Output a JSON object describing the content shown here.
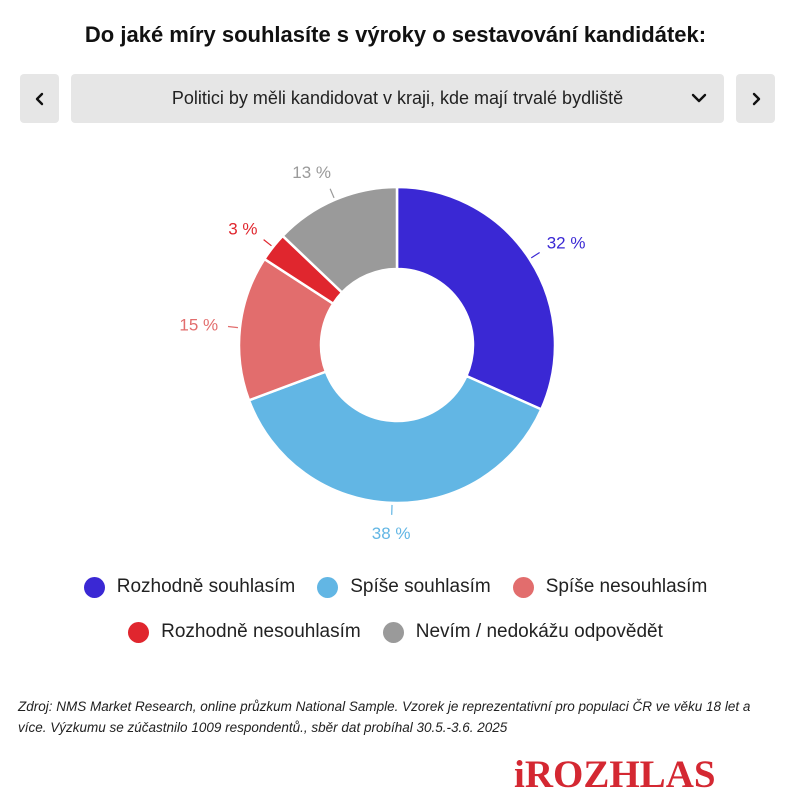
{
  "header": {
    "title": "Do jaké míry souhlasíte s výroky o sestavování kandidátek:"
  },
  "selector": {
    "value": "Politici by měli kandidovat v kraji, kde mají trvalé bydliště",
    "prev_icon": "chevron-left-icon",
    "next_icon": "chevron-right-icon",
    "dropdown_icon": "chevron-down-icon"
  },
  "chart_data": {
    "type": "pie",
    "donut": true,
    "categories": [
      "Rozhodně souhlasím",
      "Spíše souhlasím",
      "Spíše nesouhlasím",
      "Rozhodně nesouhlasím",
      "Nevím / nedokážu odpovědět"
    ],
    "values": [
      32,
      38,
      15,
      3,
      13
    ],
    "labels": [
      "32 %",
      "38 %",
      "15 %",
      "3 %",
      "13 %"
    ],
    "colors": [
      "#3a28d4",
      "#62b6e4",
      "#e26d6d",
      "#e0262e",
      "#9a9a9a"
    ]
  },
  "legend": {
    "row1": [
      {
        "label": "Rozhodně souhlasím",
        "color": "#3a28d4"
      },
      {
        "label": "Spíše souhlasím",
        "color": "#62b6e4"
      },
      {
        "label": "Spíše nesouhlasím",
        "color": "#e26d6d"
      }
    ],
    "row2": [
      {
        "label": "Rozhodně nesouhlasím",
        "color": "#e0262e"
      },
      {
        "label": "Nevím / nedokážu odpovědět",
        "color": "#9a9a9a"
      }
    ]
  },
  "footnote": "Zdroj: NMS Market Research, online průzkum National Sample. Vzorek je reprezentativní pro populaci ČR ve věku 18 let a více. Výzkumu se zúčastnilo 1009 respondentů., sběr dat probíhal 30.5.-3.6. 2025",
  "logo": "iROZHLAS"
}
